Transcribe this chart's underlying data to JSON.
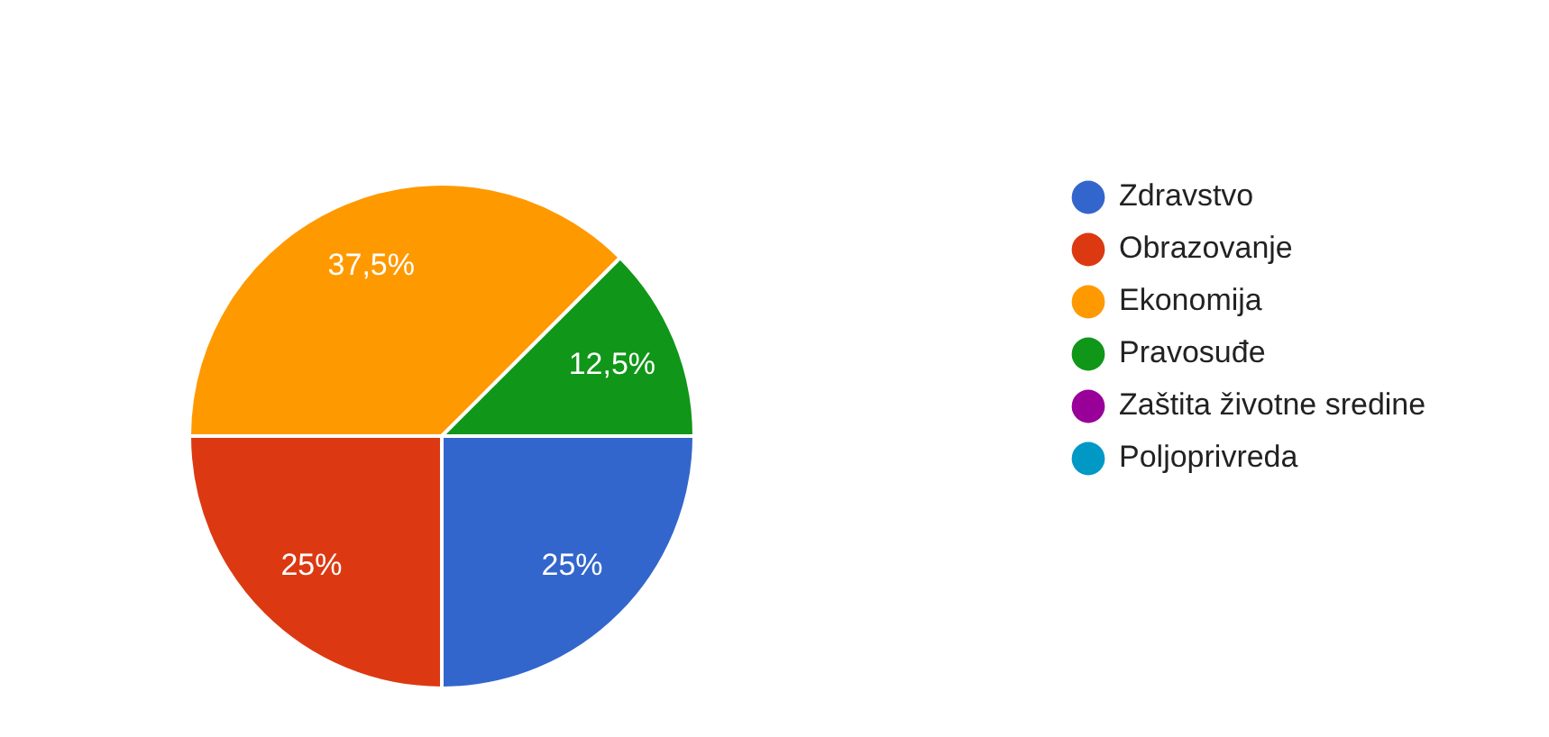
{
  "chart_data": {
    "type": "pie",
    "categories": [
      "Zdravstvo",
      "Obrazovanje",
      "Ekonomija",
      "Pravosuđe",
      "Zaštita životne sredine",
      "Poljoprivreda"
    ],
    "values": [
      25,
      25,
      37.5,
      12.5,
      0,
      0
    ],
    "colors": [
      "#3366cc",
      "#dc3912",
      "#ff9900",
      "#109618",
      "#990099",
      "#0099c6"
    ],
    "value_labels": [
      "25%",
      "25%",
      "37,5%",
      "12,5%",
      null,
      null
    ],
    "legend": "right"
  }
}
